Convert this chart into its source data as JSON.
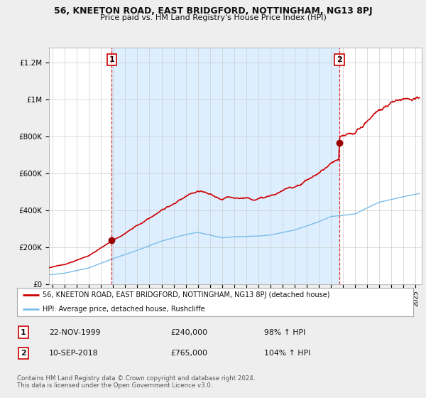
{
  "title": "56, KNEETON ROAD, EAST BRIDGFORD, NOTTINGHAM, NG13 8PJ",
  "subtitle": "Price paid vs. HM Land Registry's House Price Index (HPI)",
  "ytick_values": [
    0,
    200000,
    400000,
    600000,
    800000,
    1000000,
    1200000
  ],
  "ylim": [
    0,
    1280000
  ],
  "xlim_start": 1994.7,
  "xlim_end": 2025.5,
  "sale1": {
    "date_x": 1999.89,
    "price": 240000,
    "label": "1",
    "date_str": "22-NOV-1999",
    "hpi_pct": "98%"
  },
  "sale2": {
    "date_x": 2018.69,
    "price": 765000,
    "label": "2",
    "date_str": "10-SEP-2018",
    "hpi_pct": "104%"
  },
  "hpi_color": "#7abde8",
  "price_color": "#cc0000",
  "sale_dot_color": "#990000",
  "legend_label1": "56, KNEETON ROAD, EAST BRIDGFORD, NOTTINGHAM, NG13 8PJ (detached house)",
  "legend_label2": "HPI: Average price, detached house, Rushcliffe",
  "footer": "Contains HM Land Registry data © Crown copyright and database right 2024.\nThis data is licensed under the Open Government Licence v3.0.",
  "background_color": "#eeeeee",
  "plot_bg_color": "#ffffff",
  "shade_color": "#ddeeff"
}
